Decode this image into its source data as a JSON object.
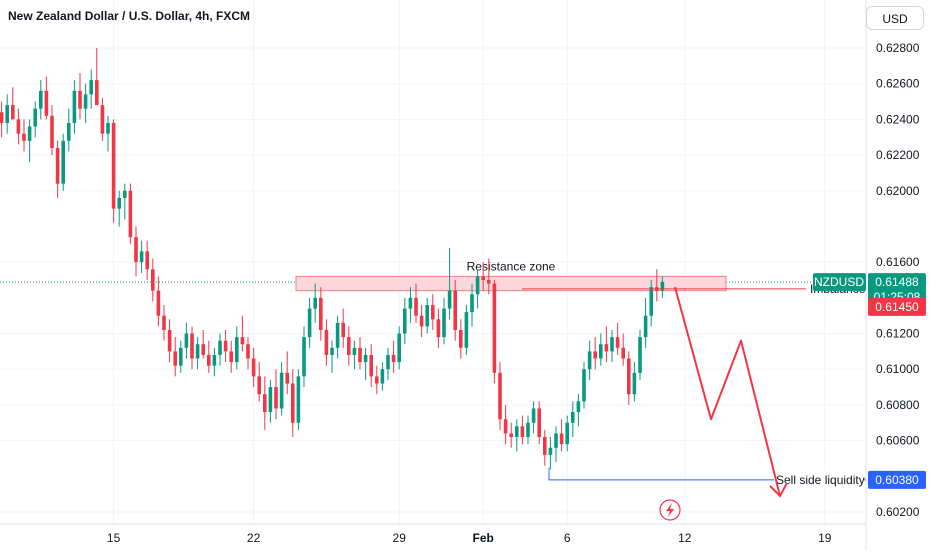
{
  "title": "New Zealand Dollar / U.S. Dollar, 4h, FXCM",
  "currency_button": "USD",
  "colors": {
    "up": "#089981",
    "down": "#f23645",
    "zone_fill": "#fbd7db",
    "zone_border": "#e8838c",
    "arrow": "#f23645",
    "liquidity_line": "#2962ff",
    "price_tag": "#089981",
    "sell_tag": "#2962ff",
    "imbalance_tag": "#f23645"
  },
  "chart_data": {
    "type": "candlestick",
    "symbol": "NZDUSD",
    "ylim": [
      0.6014,
      0.6296
    ],
    "y_ticks": [
      "0.62800",
      "0.62600",
      "0.62400",
      "0.62200",
      "0.62000",
      "0.61600",
      "0.61200",
      "0.61000",
      "0.60800",
      "0.60600",
      "0.60200"
    ],
    "x_ticks": [
      "15",
      "22",
      "29",
      "Feb",
      "6",
      "12",
      "19"
    ],
    "annotations": {
      "resistance_zone": {
        "label": "Resistance zone",
        "y_top": 0.6152,
        "y_bottom": 0.6144
      },
      "imbalance": {
        "label": "Imbalance",
        "y": 0.6145
      },
      "sell_side_liquidity": {
        "label": "Sell side liquidity",
        "y": 0.6038
      }
    },
    "price_tags": {
      "current": {
        "symbol": "NZDUSD",
        "price": "0.61488",
        "countdown": "01:25:08"
      },
      "imbalance": "0.61450",
      "sell_side": "0.60380"
    },
    "projection": [
      0.6146,
      0.6072,
      0.6116,
      0.6029
    ],
    "candles": [
      [
        0.625,
        0.6262,
        0.6236,
        0.6244
      ],
      [
        0.6244,
        0.625,
        0.623,
        0.6238
      ],
      [
        0.6238,
        0.6254,
        0.6232,
        0.6248
      ],
      [
        0.6248,
        0.6258,
        0.6242,
        0.624
      ],
      [
        0.624,
        0.6246,
        0.6226,
        0.6232
      ],
      [
        0.6232,
        0.624,
        0.6222,
        0.6228
      ],
      [
        0.6228,
        0.624,
        0.6216,
        0.6236
      ],
      [
        0.6236,
        0.625,
        0.623,
        0.6246
      ],
      [
        0.6246,
        0.6262,
        0.624,
        0.6256
      ],
      [
        0.6256,
        0.6264,
        0.624,
        0.6242
      ],
      [
        0.6242,
        0.6248,
        0.622,
        0.6224
      ],
      [
        0.6224,
        0.6228,
        0.6196,
        0.6204
      ],
      [
        0.6204,
        0.6232,
        0.62,
        0.6228
      ],
      [
        0.6228,
        0.6246,
        0.6222,
        0.6238
      ],
      [
        0.6238,
        0.6262,
        0.6232,
        0.6256
      ],
      [
        0.6256,
        0.6266,
        0.624,
        0.6246
      ],
      [
        0.6246,
        0.626,
        0.6238,
        0.6254
      ],
      [
        0.6254,
        0.6268,
        0.6246,
        0.6262
      ],
      [
        0.6262,
        0.628,
        0.625,
        0.6248
      ],
      [
        0.6248,
        0.6252,
        0.6228,
        0.6232
      ],
      [
        0.6232,
        0.6242,
        0.6222,
        0.6238
      ],
      [
        0.6238,
        0.624,
        0.6182,
        0.619
      ],
      [
        0.619,
        0.62,
        0.618,
        0.6196
      ],
      [
        0.6196,
        0.6204,
        0.6184,
        0.62
      ],
      [
        0.62,
        0.6204,
        0.617,
        0.6174
      ],
      [
        0.6174,
        0.618,
        0.6152,
        0.616
      ],
      [
        0.616,
        0.6172,
        0.6154,
        0.6166
      ],
      [
        0.6166,
        0.6172,
        0.615,
        0.6156
      ],
      [
        0.6156,
        0.6162,
        0.6138,
        0.6144
      ],
      [
        0.6144,
        0.6152,
        0.6124,
        0.613
      ],
      [
        0.613,
        0.6136,
        0.6116,
        0.6122
      ],
      [
        0.6122,
        0.6128,
        0.6104,
        0.611
      ],
      [
        0.611,
        0.6118,
        0.6096,
        0.6102
      ],
      [
        0.6102,
        0.6116,
        0.6098,
        0.6112
      ],
      [
        0.6112,
        0.6126,
        0.6106,
        0.612
      ],
      [
        0.612,
        0.6124,
        0.61,
        0.6106
      ],
      [
        0.6106,
        0.6118,
        0.61,
        0.6114
      ],
      [
        0.6114,
        0.6122,
        0.6106,
        0.6108
      ],
      [
        0.6108,
        0.6116,
        0.6098,
        0.6102
      ],
      [
        0.6102,
        0.6112,
        0.6096,
        0.6108
      ],
      [
        0.6108,
        0.612,
        0.6102,
        0.6116
      ],
      [
        0.6116,
        0.6122,
        0.6104,
        0.611
      ],
      [
        0.611,
        0.6116,
        0.6098,
        0.6104
      ],
      [
        0.6104,
        0.6124,
        0.61,
        0.6118
      ],
      [
        0.6118,
        0.613,
        0.611,
        0.6114
      ],
      [
        0.6114,
        0.6118,
        0.61,
        0.6106
      ],
      [
        0.6106,
        0.6112,
        0.609,
        0.6096
      ],
      [
        0.6096,
        0.6104,
        0.6082,
        0.6086
      ],
      [
        0.6086,
        0.6096,
        0.6066,
        0.6076
      ],
      [
        0.6076,
        0.6094,
        0.607,
        0.609
      ],
      [
        0.609,
        0.61,
        0.6072,
        0.6078
      ],
      [
        0.6078,
        0.6104,
        0.6074,
        0.6098
      ],
      [
        0.6098,
        0.611,
        0.6086,
        0.6092
      ],
      [
        0.6092,
        0.61,
        0.6062,
        0.607
      ],
      [
        0.607,
        0.61,
        0.6066,
        0.6096
      ],
      [
        0.6096,
        0.6124,
        0.609,
        0.6118
      ],
      [
        0.6118,
        0.614,
        0.6112,
        0.6134
      ],
      [
        0.6134,
        0.6148,
        0.6126,
        0.614
      ],
      [
        0.614,
        0.6146,
        0.6116,
        0.6122
      ],
      [
        0.6122,
        0.6128,
        0.6102,
        0.6108
      ],
      [
        0.6108,
        0.6116,
        0.6098,
        0.6112
      ],
      [
        0.6112,
        0.613,
        0.6106,
        0.6126
      ],
      [
        0.6126,
        0.6134,
        0.6112,
        0.6118
      ],
      [
        0.6118,
        0.6124,
        0.6102,
        0.6108
      ],
      [
        0.6108,
        0.6116,
        0.61,
        0.6112
      ],
      [
        0.6112,
        0.6118,
        0.61,
        0.6104
      ],
      [
        0.6104,
        0.6112,
        0.6094,
        0.6108
      ],
      [
        0.6108,
        0.6114,
        0.609,
        0.6096
      ],
      [
        0.6096,
        0.6102,
        0.6086,
        0.6092
      ],
      [
        0.6092,
        0.6104,
        0.6088,
        0.61
      ],
      [
        0.61,
        0.6112,
        0.6094,
        0.6108
      ],
      [
        0.6108,
        0.6116,
        0.6098,
        0.6104
      ],
      [
        0.6104,
        0.6124,
        0.61,
        0.612
      ],
      [
        0.612,
        0.614,
        0.6114,
        0.6134
      ],
      [
        0.6134,
        0.6146,
        0.6126,
        0.614
      ],
      [
        0.614,
        0.6148,
        0.6126,
        0.613
      ],
      [
        0.613,
        0.6136,
        0.6118,
        0.6124
      ],
      [
        0.6124,
        0.614,
        0.612,
        0.6136
      ],
      [
        0.6136,
        0.6142,
        0.6122,
        0.6128
      ],
      [
        0.6128,
        0.6134,
        0.6112,
        0.6118
      ],
      [
        0.6118,
        0.614,
        0.6114,
        0.6134
      ],
      [
        0.6134,
        0.6168,
        0.6128,
        0.6144
      ],
      [
        0.6144,
        0.615,
        0.6116,
        0.6122
      ],
      [
        0.6122,
        0.6128,
        0.6106,
        0.6112
      ],
      [
        0.6112,
        0.6136,
        0.6108,
        0.6132
      ],
      [
        0.6132,
        0.6148,
        0.6124,
        0.6142
      ],
      [
        0.6142,
        0.6156,
        0.6134,
        0.6152
      ],
      [
        0.6152,
        0.616,
        0.6144,
        0.615
      ],
      [
        0.615,
        0.6162,
        0.6142,
        0.6148
      ],
      [
        0.6148,
        0.615,
        0.6092,
        0.6098
      ],
      [
        0.6098,
        0.6104,
        0.6066,
        0.6072
      ],
      [
        0.6072,
        0.608,
        0.6058,
        0.6064
      ],
      [
        0.6064,
        0.607,
        0.6056,
        0.6062
      ],
      [
        0.6062,
        0.6072,
        0.6054,
        0.6068
      ],
      [
        0.6068,
        0.6074,
        0.6058,
        0.6062
      ],
      [
        0.6062,
        0.6074,
        0.6058,
        0.607
      ],
      [
        0.607,
        0.6082,
        0.6064,
        0.6078
      ],
      [
        0.6078,
        0.6082,
        0.6058,
        0.6062
      ],
      [
        0.6062,
        0.6066,
        0.6046,
        0.6052
      ],
      [
        0.6052,
        0.6062,
        0.6044,
        0.6056
      ],
      [
        0.6056,
        0.6068,
        0.6048,
        0.6064
      ],
      [
        0.6064,
        0.6072,
        0.6054,
        0.6058
      ],
      [
        0.6058,
        0.6074,
        0.6054,
        0.607
      ],
      [
        0.607,
        0.6082,
        0.6062,
        0.6076
      ],
      [
        0.6076,
        0.6086,
        0.6068,
        0.6082
      ],
      [
        0.6082,
        0.6104,
        0.6078,
        0.61
      ],
      [
        0.61,
        0.6116,
        0.6094,
        0.611
      ],
      [
        0.611,
        0.6118,
        0.61,
        0.6106
      ],
      [
        0.6106,
        0.612,
        0.6102,
        0.6114
      ],
      [
        0.6114,
        0.6124,
        0.6104,
        0.611
      ],
      [
        0.611,
        0.6122,
        0.6104,
        0.6118
      ],
      [
        0.6118,
        0.6126,
        0.6108,
        0.6112
      ],
      [
        0.6112,
        0.612,
        0.6102,
        0.6106
      ],
      [
        0.6106,
        0.611,
        0.608,
        0.6086
      ],
      [
        0.6086,
        0.6104,
        0.6082,
        0.6098
      ],
      [
        0.6098,
        0.6122,
        0.6094,
        0.6118
      ],
      [
        0.6118,
        0.614,
        0.6112,
        0.613
      ],
      [
        0.613,
        0.615,
        0.6124,
        0.6146
      ],
      [
        0.6146,
        0.6156,
        0.6138,
        0.6144
      ],
      [
        0.6144,
        0.6152,
        0.614,
        0.6149
      ]
    ]
  }
}
